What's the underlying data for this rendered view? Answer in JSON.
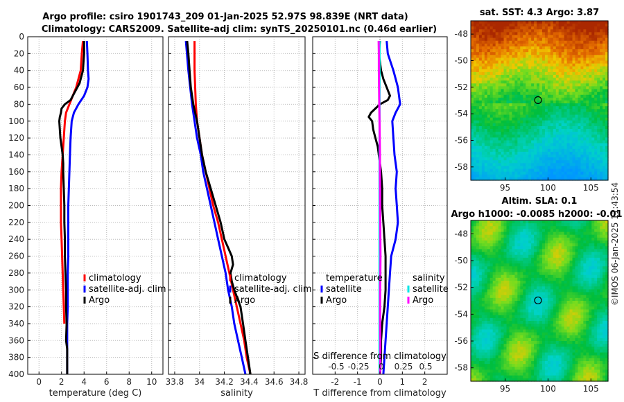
{
  "header": {
    "title_line1": "Argo profile: csiro 1901743_209 01-Jan-2025 52.97S 98.839E (NRT data)",
    "title_line2": "Climatology: CARS2009. Satellite-adj clim: synTS_20250101.nc (0.46d earlier)"
  },
  "footer_stamp": "©IMOS 06-Jan-2025 11:43:54",
  "colors": {
    "climatology": "#ff0000",
    "satellite": "#0000ff",
    "argo": "#000000",
    "salinity_satellite": "#00e5e5",
    "salinity_argo": "#ff00ff"
  },
  "chart_data": [
    {
      "id": "temperature",
      "type": "line",
      "xlabel": "temperature (deg C)",
      "xlim": [
        -1,
        11
      ],
      "xticks": [
        0,
        2,
        4,
        6,
        8,
        10
      ],
      "ylim": [
        0,
        400
      ],
      "yticks": [
        0,
        20,
        40,
        60,
        80,
        100,
        120,
        140,
        160,
        180,
        200,
        220,
        240,
        260,
        280,
        300,
        320,
        340,
        360,
        380,
        400
      ],
      "y_inverted": true,
      "legend": {
        "position": "bottom-right",
        "entries": [
          "climatology",
          "satellite-adj. clim",
          "Argo"
        ]
      },
      "series": [
        {
          "name": "climatology",
          "color": "#ff0000",
          "depth": [
            5,
            20,
            40,
            60,
            70,
            80,
            90,
            100,
            120,
            140,
            160,
            180,
            200,
            220,
            240,
            260,
            280,
            300,
            320,
            340
          ],
          "values": [
            3.9,
            3.8,
            3.7,
            3.3,
            3.0,
            2.7,
            2.4,
            2.3,
            2.2,
            2.1,
            2.0,
            1.95,
            1.95,
            1.95,
            2.0,
            2.05,
            2.1,
            2.15,
            2.2,
            2.25
          ]
        },
        {
          "name": "satellite-adj. clim",
          "color": "#0000ff",
          "depth": [
            5,
            20,
            40,
            50,
            60,
            70,
            80,
            90,
            100,
            120,
            140,
            160,
            180,
            200,
            220,
            240,
            260,
            280,
            300,
            320,
            340,
            360,
            380,
            400
          ],
          "values": [
            4.25,
            4.3,
            4.35,
            4.4,
            4.3,
            4.0,
            3.5,
            3.1,
            2.9,
            2.8,
            2.75,
            2.7,
            2.65,
            2.6,
            2.6,
            2.6,
            2.6,
            2.55,
            2.55,
            2.55,
            2.5,
            2.5,
            2.5,
            2.5
          ]
        },
        {
          "name": "Argo",
          "color": "#000000",
          "depth": [
            5,
            20,
            40,
            55,
            65,
            75,
            80,
            85,
            90,
            95,
            100,
            110,
            120,
            130,
            140,
            150,
            160,
            180,
            200,
            220,
            240,
            260,
            280,
            300,
            320,
            340,
            360,
            370,
            380,
            400
          ],
          "values": [
            4.0,
            4.0,
            3.9,
            3.6,
            3.2,
            2.8,
            2.3,
            2.0,
            1.95,
            1.85,
            1.8,
            1.85,
            1.9,
            2.0,
            2.1,
            2.15,
            2.15,
            2.2,
            2.25,
            2.25,
            2.3,
            2.3,
            2.35,
            2.4,
            2.4,
            2.45,
            2.4,
            2.5,
            2.5,
            2.5
          ]
        }
      ]
    },
    {
      "id": "salinity",
      "type": "line",
      "xlabel": "salinity",
      "xlim": [
        33.75,
        34.85
      ],
      "xticks": [
        33.8,
        34,
        34.2,
        34.4,
        34.6,
        34.8
      ],
      "ylim": [
        0,
        400
      ],
      "y_inverted": true,
      "legend": {
        "position": "bottom-right",
        "entries": [
          "climatology",
          "satellite-adj. clim",
          "Argo"
        ]
      },
      "series": [
        {
          "name": "climatology",
          "color": "#ff0000",
          "depth": [
            5,
            40,
            80,
            100,
            120,
            140,
            160,
            180,
            200,
            220,
            240,
            260,
            280,
            300,
            320,
            340,
            360,
            380,
            400
          ],
          "values": [
            33.96,
            33.96,
            33.97,
            33.98,
            34.0,
            34.02,
            34.05,
            34.08,
            34.11,
            34.15,
            34.18,
            34.21,
            34.24,
            34.27,
            34.3,
            34.33,
            34.36,
            34.38,
            34.41
          ]
        },
        {
          "name": "satellite-adj. clim",
          "color": "#0000ff",
          "depth": [
            5,
            40,
            80,
            100,
            120,
            140,
            160,
            180,
            200,
            220,
            240,
            260,
            280,
            300,
            320,
            340,
            360,
            380,
            400
          ],
          "values": [
            33.89,
            33.91,
            33.94,
            33.96,
            33.98,
            34.01,
            34.03,
            34.06,
            34.09,
            34.12,
            34.15,
            34.18,
            34.21,
            34.23,
            34.26,
            34.28,
            34.31,
            34.34,
            34.37
          ]
        },
        {
          "name": "Argo",
          "color": "#000000",
          "depth": [
            5,
            20,
            40,
            60,
            80,
            100,
            120,
            140,
            160,
            180,
            200,
            220,
            240,
            250,
            260,
            270,
            280,
            290,
            300,
            320,
            340,
            360,
            380,
            400
          ],
          "values": [
            33.9,
            33.91,
            33.92,
            33.93,
            33.95,
            33.98,
            34.0,
            34.02,
            34.05,
            34.09,
            34.13,
            34.17,
            34.2,
            34.23,
            34.26,
            34.27,
            34.25,
            34.26,
            34.28,
            34.33,
            34.35,
            34.37,
            34.39,
            34.41
          ]
        }
      ]
    },
    {
      "id": "difference",
      "type": "line",
      "xlabel": "T difference from climatology",
      "xlabel_top": "S difference from climatology",
      "xlim": [
        -3,
        3
      ],
      "xticks": [
        -2,
        -1,
        0,
        1,
        2
      ],
      "top_ticks": [
        "-0.5",
        "-0.25",
        "0",
        "0.25",
        "0.5"
      ],
      "ylim": [
        0,
        400
      ],
      "y_inverted": true,
      "legend_left": {
        "title": "temperature",
        "entries": [
          "satellite",
          "Argo"
        ]
      },
      "legend_right": {
        "title": "salinity",
        "entries": [
          "satellite",
          "Argo"
        ]
      },
      "series": [
        {
          "name": "temperature satellite",
          "color": "#0000ff",
          "depth": [
            5,
            20,
            40,
            60,
            80,
            90,
            100,
            120,
            140,
            160,
            180,
            200,
            220,
            240,
            260,
            280,
            300,
            320,
            340,
            360,
            380,
            400
          ],
          "values": [
            0.3,
            0.35,
            0.6,
            0.8,
            0.9,
            0.7,
            0.55,
            0.6,
            0.65,
            0.75,
            0.7,
            0.75,
            0.8,
            0.7,
            0.5,
            0.45,
            0.4,
            0.35,
            0.3,
            0.25,
            0.2,
            0.15
          ]
        },
        {
          "name": "temperature Argo",
          "color": "#000000",
          "depth": [
            5,
            20,
            40,
            50,
            60,
            70,
            75,
            80,
            90,
            95,
            100,
            110,
            120,
            130,
            140,
            150,
            160,
            180,
            200,
            220,
            240,
            260,
            280,
            300,
            320,
            340,
            360,
            380,
            400
          ],
          "values": [
            0.0,
            -0.05,
            0.05,
            0.15,
            0.3,
            0.45,
            0.35,
            0.0,
            -0.4,
            -0.5,
            -0.35,
            -0.3,
            -0.2,
            -0.1,
            -0.05,
            0.0,
            0.05,
            0.1,
            0.1,
            0.15,
            0.2,
            0.25,
            0.25,
            0.25,
            0.2,
            0.1,
            0.05,
            0.05,
            0.0
          ]
        },
        {
          "name": "salinity satellite",
          "color": "#00e5e5",
          "depth": [
            5,
            40,
            80,
            120,
            160,
            200,
            240,
            280,
            320,
            360,
            400
          ],
          "values": [
            -0.02,
            -0.02,
            -0.02,
            -0.02,
            -0.02,
            -0.02,
            -0.02,
            -0.02,
            -0.02,
            -0.02,
            -0.02
          ]
        },
        {
          "name": "salinity Argo",
          "color": "#ff00ff",
          "depth": [
            5,
            20,
            40,
            60,
            80,
            100,
            120,
            140,
            160,
            180,
            200,
            220,
            240,
            260,
            280,
            300,
            320,
            340,
            360,
            380,
            400
          ],
          "values": [
            -0.06,
            -0.05,
            -0.05,
            -0.04,
            -0.03,
            -0.02,
            -0.01,
            0.0,
            0.0,
            0.005,
            0.01,
            0.015,
            0.02,
            0.025,
            0.02,
            0.01,
            0.01,
            0.01,
            0.02,
            0.02,
            0.01
          ]
        }
      ]
    },
    {
      "id": "sst_map",
      "type": "heatmap",
      "title": "sat. SST: 4.3 Argo: 3.87",
      "xlim": [
        91,
        107
      ],
      "xticks": [
        95,
        100,
        105
      ],
      "ylim": [
        -59,
        -47
      ],
      "yticks": [
        -48,
        -50,
        -52,
        -54,
        -56,
        -58
      ],
      "marker": {
        "lon": 98.839,
        "lat": -52.97
      }
    },
    {
      "id": "sla_map",
      "type": "heatmap",
      "title_line1": "Altim. SLA: 0.1",
      "title_line2": "Argo h1000: -0.0085 h2000: -0.01",
      "xlim": [
        91,
        107
      ],
      "xticks": [
        95,
        100,
        105
      ],
      "ylim": [
        -59,
        -47
      ],
      "yticks": [
        -48,
        -50,
        -52,
        -54,
        -56,
        -58
      ],
      "marker": {
        "lon": 98.839,
        "lat": -52.97
      }
    }
  ]
}
